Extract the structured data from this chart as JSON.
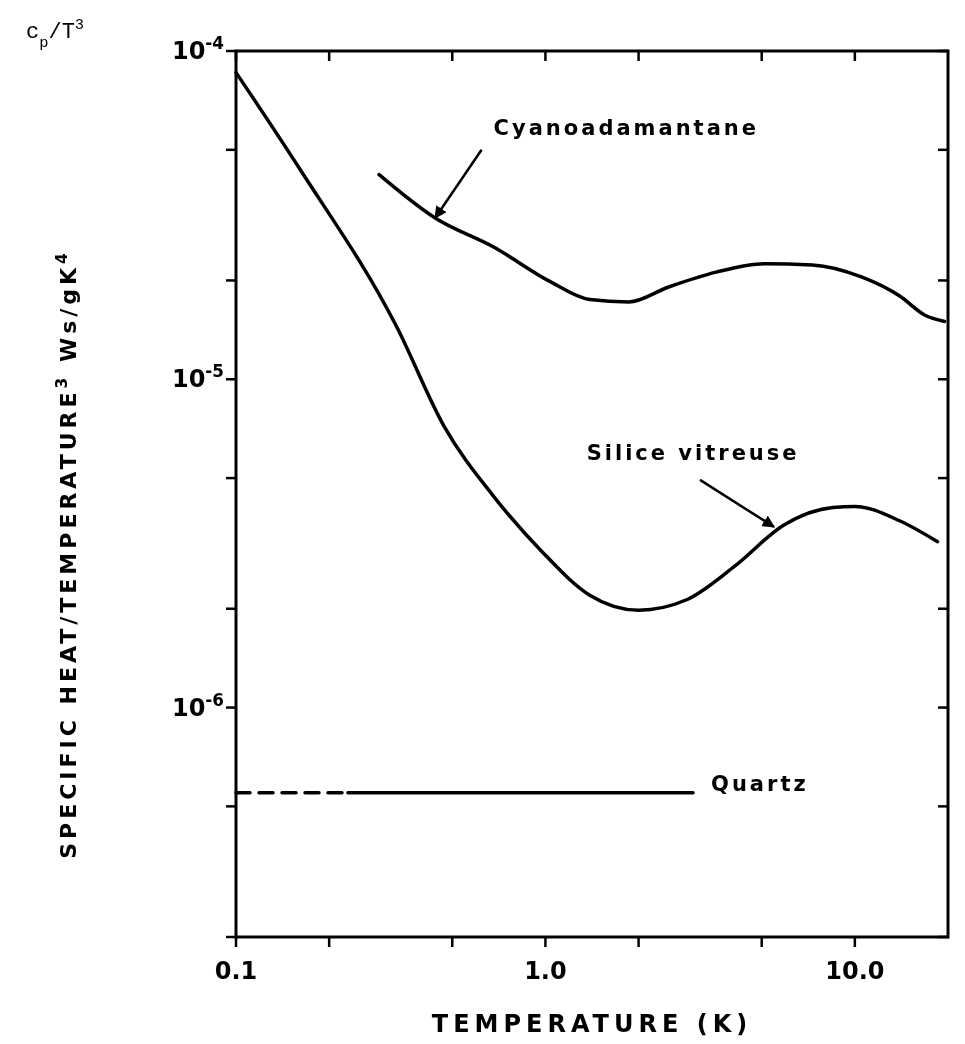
{
  "chart_data": {
    "type": "line",
    "xlabel": "TEMPERATURE (K)",
    "ylabel": "SPECIFIC HEAT/TEMPERATURE$^{3}$  Ws/gK$^{4}$",
    "annotations": [
      "c$_{p}$/T$^{3}$"
    ],
    "log": "xy",
    "xlim": [
      0.1,
      20
    ],
    "ylim": [
      2e-07,
      0.0001
    ],
    "xticks": [
      {
        "value": 0.1,
        "label": "0.1"
      },
      {
        "value": 0.2,
        "label": null
      },
      {
        "value": 0.5,
        "label": null
      },
      {
        "value": 1,
        "label": "1.0"
      },
      {
        "value": 2,
        "label": null
      },
      {
        "value": 5,
        "label": null
      },
      {
        "value": 10,
        "label": "10.0"
      }
    ],
    "yticks": [
      {
        "value": 2e-07,
        "label": null
      },
      {
        "value": 5e-07,
        "label": null
      },
      {
        "value": 1e-06,
        "label": "10$^{-6}$"
      },
      {
        "value": 2e-06,
        "label": null
      },
      {
        "value": 5e-06,
        "label": null
      },
      {
        "value": 1e-05,
        "label": "10$^{-5}$"
      },
      {
        "value": 2e-05,
        "label": null
      },
      {
        "value": 5e-05,
        "label": null
      },
      {
        "value": 0.0001,
        "label": "10$^{-4}$"
      }
    ],
    "grid": false,
    "series": [
      {
        "name": "Cyanoadamantane",
        "color": "#000000",
        "line_style": "solid",
        "x": [
          0.29,
          0.44,
          0.68,
          1.04,
          1.39,
          1.86,
          2.5,
          3.56,
          5.1,
          7.3,
          10.5,
          14,
          16.8,
          19.5
        ],
        "values": [
          4.2e-05,
          3.1e-05,
          2.53e-05,
          1.98e-05,
          1.75e-05,
          1.72e-05,
          1.91e-05,
          2.12e-05,
          2.25e-05,
          2.23e-05,
          2.05e-05,
          1.79e-05,
          1.57e-05,
          1.5e-05
        ]
      },
      {
        "name": "Silice vitreuse",
        "color": "#000000",
        "line_style": "solid",
        "x": [
          0.1,
          0.16,
          0.33,
          0.47,
          0.68,
          0.97,
          1.39,
          2.0,
          2.86,
          4.1,
          5.9,
          8.5,
          10,
          14,
          18.5
        ],
        "values": [
          8.6e-05,
          4.4e-05,
          1.45e-05,
          7.2e-06,
          4.4e-06,
          3e-06,
          2.2e-06,
          1.98e-06,
          2.13e-06,
          2.7e-06,
          3.6e-06,
          4.07e-06,
          4.1e-06,
          3.7e-06,
          3.2e-06
        ]
      },
      {
        "color": "#000000",
        "line_style": "dashed",
        "x": [
          0.1,
          0.23
        ],
        "values": [
          5.5e-07,
          5.5e-07
        ]
      },
      {
        "name": "Quartz",
        "color": "#000000",
        "line_style": "solid",
        "x": [
          0.23,
          3.0
        ],
        "values": [
          5.5e-07,
          5.5e-07
        ]
      }
    ]
  }
}
